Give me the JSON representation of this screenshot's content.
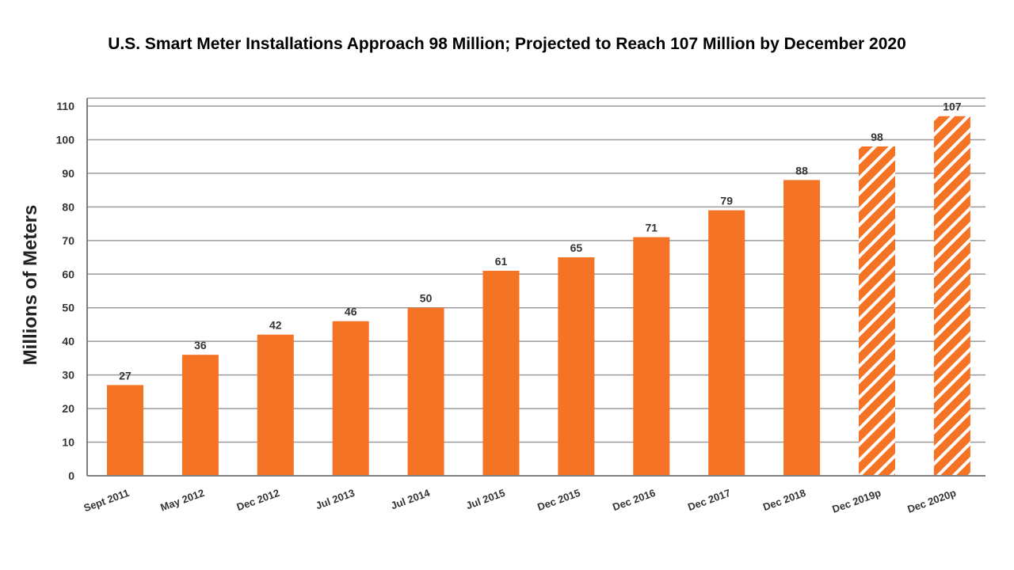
{
  "chart_data": {
    "type": "bar",
    "title": "U.S. Smart Meter Installations Approach 98 Million; Projected to Reach 107 Million by December 2020",
    "xlabel": "",
    "ylabel": "Millions of Meters",
    "ylim": [
      0,
      110
    ],
    "yticks": [
      0,
      10,
      20,
      30,
      40,
      50,
      60,
      70,
      80,
      90,
      100,
      110
    ],
    "grid": true,
    "categories": [
      "Sept 2011",
      "May 2012",
      "Dec 2012",
      "Jul 2013",
      "Jul 2014",
      "Jul 2015",
      "Dec 2015",
      "Dec 2016",
      "Dec 2017",
      "Dec 2018",
      "Dec 2019p",
      "Dec 2020p"
    ],
    "values": [
      27,
      36,
      42,
      46,
      50,
      61,
      65,
      71,
      79,
      88,
      98,
      107
    ],
    "data_labels": [
      "27",
      "36",
      "42",
      "46",
      "50",
      "61",
      "65",
      "71",
      "79",
      "88",
      "98",
      "107"
    ],
    "projected": [
      false,
      false,
      false,
      false,
      false,
      false,
      false,
      false,
      false,
      false,
      true,
      true
    ],
    "colors": {
      "bar": "#f47324",
      "projected_stripe": "#ffffff",
      "grid": "#9a9a9a",
      "axis": "#7f7f7f"
    }
  }
}
